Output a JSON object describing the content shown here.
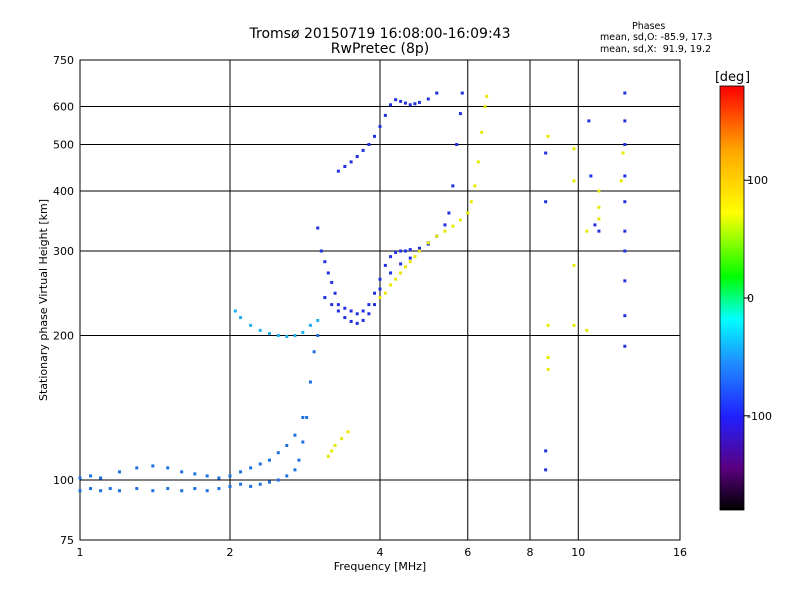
{
  "header": {
    "title_line1": "Tromsø 20150719 16:08:00-16:09:43",
    "title_line2": "RwPretec (8p)",
    "phase_label": "Phases",
    "phase_o": "mean, sd,O: -85.9, 17.3",
    "phase_x": "mean, sd,X:  91.9, 19.2"
  },
  "colorbar": {
    "unit_label": "deg",
    "tick_labels": [
      "100",
      "0",
      "-100"
    ],
    "tick_values": [
      100,
      0,
      -100
    ],
    "range": [
      -180,
      180
    ],
    "colors": [
      "#000000",
      "#5a0080",
      "#2020ff",
      "#1e90ff",
      "#00ffff",
      "#00ff00",
      "#ffff00",
      "#ffa500",
      "#ff0000"
    ]
  },
  "chart_data": {
    "type": "scatter",
    "xlabel": "Frequency [MHz]",
    "ylabel": "Stationary phase Virtual Height [km]",
    "xscale": "log",
    "yscale": "log",
    "xlim": [
      1,
      16
    ],
    "ylim": [
      75,
      750
    ],
    "xticks": [
      1,
      2,
      4,
      6,
      8,
      10,
      16
    ],
    "xtick_labels": [
      "1",
      "2",
      "4",
      "6",
      "8",
      "10",
      "16"
    ],
    "yticks": [
      75,
      100,
      200,
      300,
      400,
      500,
      600,
      750
    ],
    "ytick_labels": [
      "75",
      "100",
      "200",
      "300",
      "400",
      "500",
      "600",
      "750"
    ],
    "grid": true,
    "colors": {
      "o_mode": "#2030e0",
      "lower": "#1e70e0",
      "x_mode": "#e8e800",
      "oblique": "#20b0f0"
    },
    "series": [
      {
        "key": "lower",
        "points": [
          [
            1.0,
            95
          ],
          [
            1.05,
            96
          ],
          [
            1.1,
            95
          ],
          [
            1.15,
            96
          ],
          [
            1.2,
            95
          ],
          [
            1.3,
            96
          ],
          [
            1.4,
            95
          ],
          [
            1.5,
            96
          ],
          [
            1.6,
            95
          ],
          [
            1.7,
            96
          ],
          [
            1.8,
            95
          ],
          [
            1.9,
            96
          ],
          [
            2.0,
            97
          ],
          [
            2.1,
            98
          ],
          [
            2.2,
            97
          ],
          [
            2.3,
            98
          ],
          [
            2.4,
            99
          ],
          [
            2.5,
            100
          ],
          [
            2.6,
            102
          ],
          [
            2.7,
            105
          ],
          [
            2.75,
            110
          ],
          [
            2.8,
            120
          ],
          [
            2.85,
            135
          ],
          [
            2.9,
            160
          ],
          [
            2.95,
            185
          ],
          [
            3.0,
            200
          ]
        ]
      },
      {
        "key": "lower",
        "points": [
          [
            1.0,
            101
          ],
          [
            1.05,
            102
          ],
          [
            1.1,
            101
          ],
          [
            1.2,
            104
          ],
          [
            1.3,
            106
          ],
          [
            1.4,
            107
          ],
          [
            1.5,
            106
          ],
          [
            1.6,
            104
          ],
          [
            1.7,
            103
          ],
          [
            1.8,
            102
          ],
          [
            1.9,
            101
          ],
          [
            2.0,
            102
          ],
          [
            2.1,
            104
          ],
          [
            2.2,
            106
          ],
          [
            2.3,
            108
          ],
          [
            2.4,
            110
          ],
          [
            2.5,
            114
          ],
          [
            2.6,
            118
          ],
          [
            2.7,
            124
          ],
          [
            2.8,
            135
          ]
        ]
      },
      {
        "key": "oblique",
        "points": [
          [
            2.05,
            225
          ],
          [
            2.1,
            218
          ],
          [
            2.2,
            210
          ],
          [
            2.3,
            205
          ],
          [
            2.4,
            202
          ],
          [
            2.5,
            200
          ],
          [
            2.6,
            199
          ],
          [
            2.7,
            200
          ],
          [
            2.8,
            203
          ],
          [
            2.9,
            210
          ],
          [
            3.0,
            215
          ]
        ]
      },
      {
        "key": "o_mode",
        "points": [
          [
            3.0,
            335
          ],
          [
            3.05,
            300
          ],
          [
            3.1,
            285
          ],
          [
            3.15,
            270
          ],
          [
            3.2,
            258
          ],
          [
            3.25,
            245
          ],
          [
            3.3,
            232
          ],
          [
            3.4,
            228
          ],
          [
            3.5,
            225
          ],
          [
            3.6,
            222
          ],
          [
            3.7,
            225
          ],
          [
            3.8,
            232
          ],
          [
            3.9,
            245
          ],
          [
            4.0,
            262
          ],
          [
            4.1,
            280
          ],
          [
            4.2,
            292
          ],
          [
            4.3,
            298
          ],
          [
            4.4,
            300
          ],
          [
            4.5,
            300
          ],
          [
            4.6,
            302
          ],
          [
            4.8,
            304
          ],
          [
            5.0,
            312
          ],
          [
            5.2,
            322
          ],
          [
            5.4,
            340
          ],
          [
            5.5,
            360
          ],
          [
            5.6,
            410
          ],
          [
            5.7,
            500
          ],
          [
            5.8,
            580
          ],
          [
            5.85,
            640
          ]
        ]
      },
      {
        "key": "o_mode",
        "points": [
          [
            3.1,
            240
          ],
          [
            3.2,
            232
          ],
          [
            3.3,
            225
          ],
          [
            3.4,
            218
          ],
          [
            3.5,
            214
          ],
          [
            3.6,
            212
          ],
          [
            3.7,
            215
          ],
          [
            3.8,
            222
          ],
          [
            3.9,
            232
          ],
          [
            4.0,
            250
          ],
          [
            4.2,
            270
          ],
          [
            4.4,
            282
          ],
          [
            4.6,
            290
          ],
          [
            4.8,
            300
          ],
          [
            5.0,
            310
          ]
        ]
      },
      {
        "key": "o_mode",
        "points": [
          [
            3.3,
            440
          ],
          [
            3.4,
            450
          ],
          [
            3.5,
            460
          ],
          [
            3.6,
            472
          ],
          [
            3.7,
            486
          ],
          [
            3.8,
            500
          ],
          [
            3.9,
            520
          ],
          [
            4.0,
            545
          ],
          [
            4.1,
            575
          ],
          [
            4.2,
            605
          ],
          [
            4.3,
            620
          ],
          [
            4.4,
            615
          ],
          [
            4.5,
            610
          ],
          [
            4.6,
            605
          ],
          [
            4.7,
            608
          ],
          [
            4.8,
            612
          ],
          [
            5.0,
            622
          ],
          [
            5.2,
            640
          ]
        ]
      },
      {
        "key": "x_mode",
        "points": [
          [
            4.0,
            240
          ],
          [
            4.1,
            245
          ],
          [
            4.2,
            255
          ],
          [
            4.3,
            262
          ],
          [
            4.4,
            270
          ],
          [
            4.5,
            278
          ],
          [
            4.6,
            285
          ],
          [
            4.7,
            292
          ],
          [
            4.8,
            300
          ],
          [
            5.0,
            312
          ],
          [
            5.2,
            322
          ],
          [
            5.4,
            330
          ],
          [
            5.6,
            338
          ],
          [
            5.8,
            348
          ],
          [
            6.0,
            360
          ],
          [
            6.1,
            380
          ],
          [
            6.2,
            410
          ],
          [
            6.3,
            460
          ],
          [
            6.4,
            530
          ],
          [
            6.5,
            600
          ],
          [
            6.55,
            630
          ]
        ]
      },
      {
        "key": "x_mode",
        "points": [
          [
            3.15,
            112
          ],
          [
            3.2,
            115
          ],
          [
            3.25,
            118
          ],
          [
            3.35,
            122
          ],
          [
            3.45,
            126
          ]
        ]
      },
      {
        "key": "o_mode",
        "points": [
          [
            8.6,
            480
          ],
          [
            8.6,
            380
          ],
          [
            8.6,
            115
          ],
          [
            8.6,
            105
          ],
          [
            10.5,
            560
          ],
          [
            10.6,
            430
          ],
          [
            10.8,
            340
          ],
          [
            11.0,
            330
          ],
          [
            12.4,
            640
          ],
          [
            12.4,
            560
          ],
          [
            12.4,
            500
          ],
          [
            12.4,
            430
          ],
          [
            12.4,
            380
          ],
          [
            12.4,
            330
          ],
          [
            12.4,
            300
          ],
          [
            12.4,
            260
          ],
          [
            12.4,
            220
          ],
          [
            12.4,
            190
          ]
        ]
      },
      {
        "key": "x_mode",
        "points": [
          [
            8.7,
            520
          ],
          [
            8.7,
            210
          ],
          [
            8.7,
            180
          ],
          [
            8.7,
            170
          ],
          [
            9.8,
            490
          ],
          [
            9.8,
            420
          ],
          [
            9.8,
            280
          ],
          [
            9.8,
            210
          ],
          [
            11.0,
            400
          ],
          [
            11.0,
            370
          ],
          [
            11.0,
            350
          ],
          [
            12.3,
            480
          ],
          [
            12.2,
            420
          ],
          [
            10.4,
            330
          ],
          [
            10.4,
            205
          ]
        ]
      }
    ]
  }
}
